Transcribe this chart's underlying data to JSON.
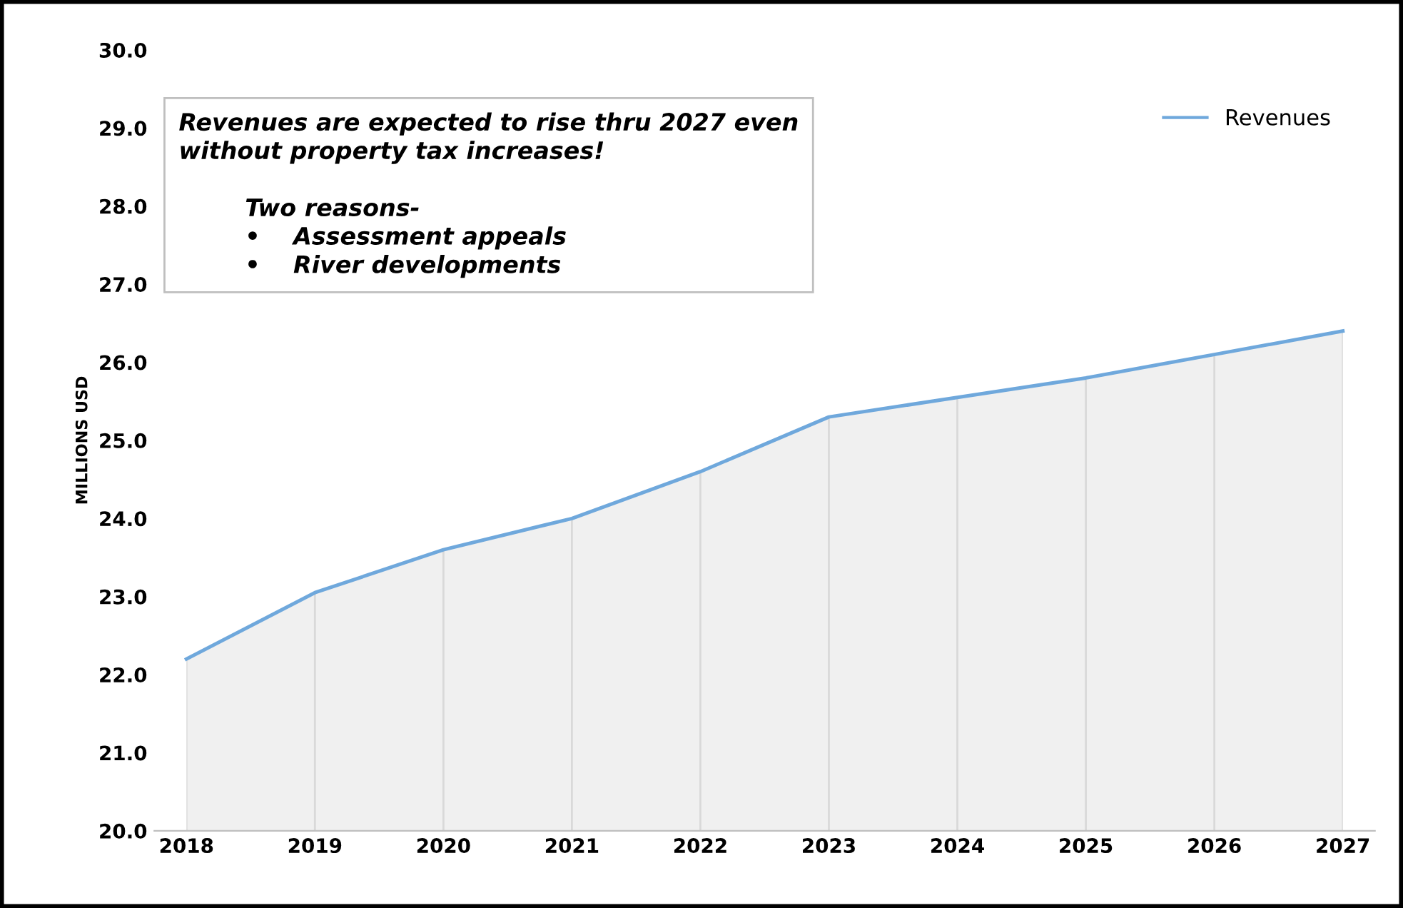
{
  "chart_data": {
    "type": "area",
    "ylabel": "MILLIONS USD",
    "categories": [
      "2018",
      "2019",
      "2020",
      "2021",
      "2022",
      "2023",
      "2024",
      "2025",
      "2026",
      "2027"
    ],
    "series": [
      {
        "name": "Revenues",
        "color": "#6fa8dc",
        "values": [
          22.2,
          23.05,
          23.6,
          24.0,
          24.6,
          25.3,
          25.55,
          25.8,
          26.1,
          26.4
        ]
      }
    ],
    "ylim": [
      20,
      30
    ],
    "yticks": [
      {
        "value": 20,
        "label": "20.0"
      },
      {
        "value": 21,
        "label": "21.0"
      },
      {
        "value": 22,
        "label": "22.0"
      },
      {
        "value": 23,
        "label": "23.0"
      },
      {
        "value": 24,
        "label": "24.0"
      },
      {
        "value": 25,
        "label": "25.0"
      },
      {
        "value": 26,
        "label": "26.0"
      },
      {
        "value": 27,
        "label": "27.0"
      },
      {
        "value": 28,
        "label": "28.0"
      },
      {
        "value": 29,
        "label": "29.0"
      },
      {
        "value": 30,
        "label": "30.0"
      }
    ],
    "grid": "x",
    "legend": "top right",
    "annotations": [
      "Revenues are expected to rise thru 2027 even\nwithout property tax increases!\n\n        Two reasons-\n        •    Assessment appeals\n        •    River developments"
    ]
  }
}
